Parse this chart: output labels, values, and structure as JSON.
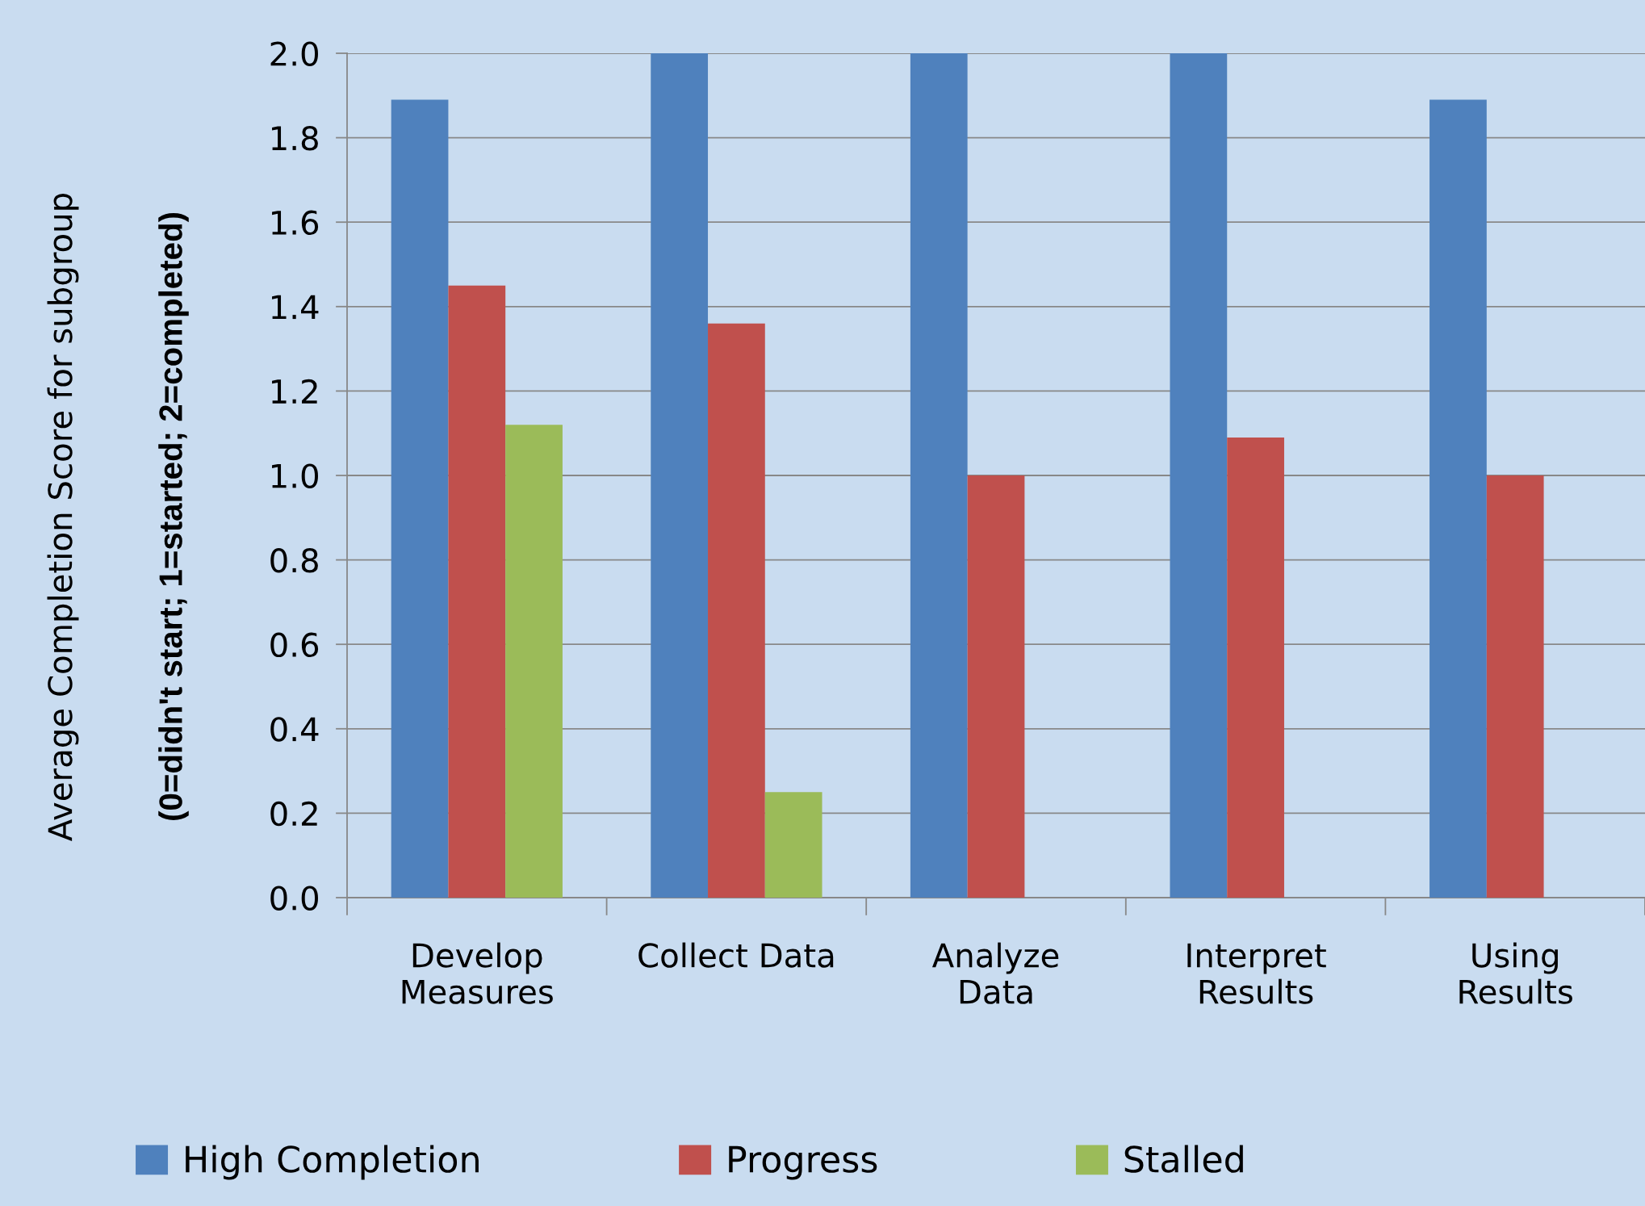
{
  "chart_data": {
    "type": "bar",
    "ylabel": "Average Completion Score for subgroup\n(0=didn't start; 1=started; 2=completed)",
    "categories": [
      "Develop\nMeasures",
      "Collect Data",
      "Analyze\nData",
      "Interpret\nResults",
      "Using\nResults"
    ],
    "series": [
      {
        "name": "High Completion",
        "color": "#4f81bd",
        "values": [
          1.89,
          2.0,
          2.0,
          2.0,
          1.89
        ]
      },
      {
        "name": "Progress",
        "color": "#c0504d",
        "values": [
          1.45,
          1.36,
          1.0,
          1.09,
          1.0
        ]
      },
      {
        "name": "Stalled",
        "color": "#9bbb59",
        "values": [
          1.12,
          0.25,
          0,
          0,
          0
        ]
      }
    ],
    "ylim": [
      0,
      2.0
    ],
    "yticks": [
      {
        "value": 0,
        "label": "0.0"
      },
      {
        "value": 0.2,
        "label": "0.2"
      },
      {
        "value": 0.4,
        "label": "0.4"
      },
      {
        "value": 0.6,
        "label": "0.6"
      },
      {
        "value": 0.8,
        "label": "0.8"
      },
      {
        "value": 1.0,
        "label": "1.0"
      },
      {
        "value": 1.2,
        "label": "1.2"
      },
      {
        "value": 1.4,
        "label": "1.4"
      },
      {
        "value": 1.6,
        "label": "1.6"
      },
      {
        "value": 1.8,
        "label": "1.8"
      },
      {
        "value": 2.0,
        "label": "2.0"
      }
    ],
    "grid": "y",
    "legend": "bottom"
  }
}
